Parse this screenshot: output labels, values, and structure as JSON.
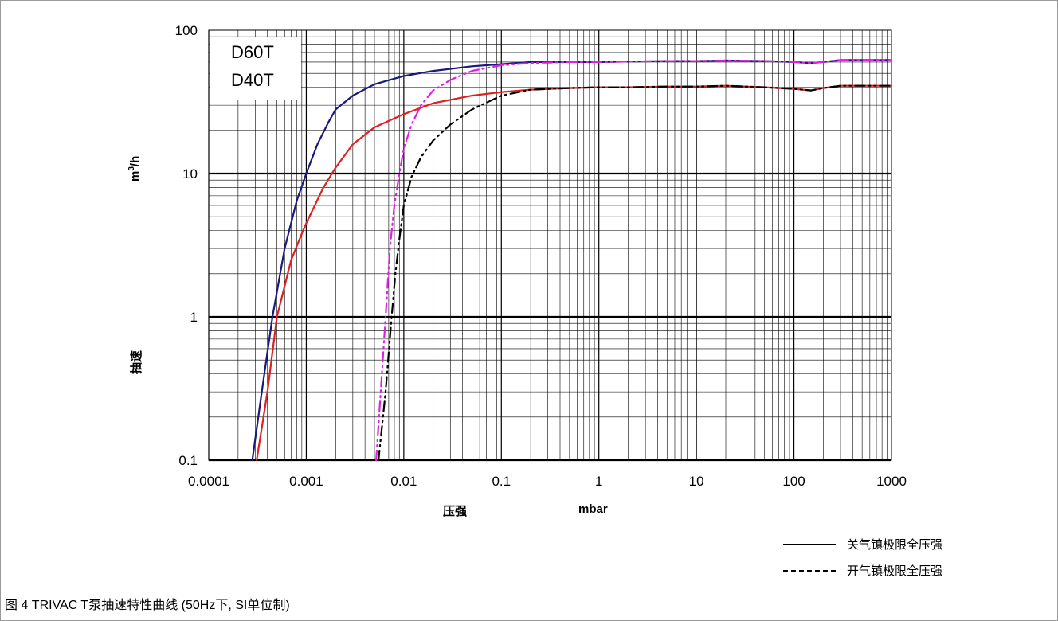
{
  "caption": "图 4 TRIVAC T泵抽速特性曲线 (50Hz下, SI单位制)",
  "models": {
    "top": "D60T",
    "bottom": "D40T"
  },
  "legend": {
    "solid": "关气镇极限全压强",
    "dashed": "开气镇极限全压强"
  },
  "colors": {
    "d60_closed": "#1a1a7a",
    "d60_open": "#e020e0",
    "d40_closed": "#e02020",
    "d40_open": "#000000"
  },
  "chart_data": {
    "type": "line",
    "xscale": "log",
    "yscale": "log",
    "xlim": [
      0.0001,
      1000
    ],
    "ylim": [
      0.1,
      100
    ],
    "xlabel": "压强",
    "xunit": "mbar",
    "ylabel": "抽速",
    "yunit": "m3/h",
    "ylabel_unit_base": "m",
    "ylabel_unit_sup": "3",
    "ylabel_unit_tail": "/h",
    "xticks": [
      "0.0001",
      "0.001",
      "0.01",
      "0.1",
      "1",
      "10",
      "100",
      "1000"
    ],
    "yticks": [
      "0.1",
      "1",
      "10",
      "100"
    ],
    "grid": true,
    "series": [
      {
        "name": "D60T",
        "style": "solid",
        "color": "#1a1a7a",
        "x": [
          0.00028,
          0.00035,
          0.00045,
          0.0006,
          0.0008,
          0.001,
          0.0013,
          0.0017,
          0.002,
          0.003,
          0.005,
          0.01,
          0.02,
          0.05,
          0.1,
          0.2,
          0.5,
          1,
          2,
          5,
          10,
          20,
          50,
          100,
          150,
          200,
          300,
          500,
          1000
        ],
        "y": [
          0.1,
          0.3,
          1,
          3,
          6.5,
          10,
          16,
          23,
          28,
          35,
          42,
          48,
          52,
          56,
          58,
          60,
          60,
          60,
          60.5,
          61,
          61,
          61.5,
          61,
          60,
          59,
          60,
          62,
          62,
          62
        ]
      },
      {
        "name": "D60T",
        "style": "dashed",
        "color": "#e020e0",
        "x": [
          0.0052,
          0.0058,
          0.0065,
          0.0072,
          0.008,
          0.009,
          0.01,
          0.012,
          0.015,
          0.02,
          0.03,
          0.05,
          0.1,
          0.2,
          0.5,
          1,
          2,
          5,
          10,
          20,
          50,
          100,
          150,
          200,
          300,
          500,
          1000
        ],
        "y": [
          0.1,
          0.3,
          1,
          3,
          6,
          10,
          15,
          22,
          30,
          38,
          45,
          52,
          57,
          59,
          60,
          60,
          60.5,
          61,
          61,
          61.5,
          61,
          60,
          59,
          60,
          62,
          62,
          62
        ]
      },
      {
        "name": "D40T",
        "style": "solid",
        "color": "#e02020",
        "x": [
          0.00031,
          0.0004,
          0.0005,
          0.0007,
          0.0009,
          0.001,
          0.0015,
          0.002,
          0.003,
          0.005,
          0.01,
          0.02,
          0.05,
          0.1,
          0.2,
          0.5,
          1,
          2,
          5,
          10,
          20,
          50,
          100,
          150,
          200,
          300,
          500,
          1000
        ],
        "y": [
          0.1,
          0.3,
          1,
          2.5,
          3.8,
          4.5,
          8,
          11,
          16,
          21,
          26,
          31,
          35,
          37,
          38.5,
          39.5,
          40,
          40,
          40.5,
          40.5,
          41,
          40,
          39,
          38,
          39.5,
          41,
          41,
          41
        ]
      },
      {
        "name": "D40T",
        "style": "dashed",
        "color": "#000000",
        "x": [
          0.0055,
          0.0065,
          0.0075,
          0.0082,
          0.009,
          0.01,
          0.012,
          0.015,
          0.02,
          0.03,
          0.05,
          0.1,
          0.2,
          0.5,
          1,
          2,
          5,
          10,
          20,
          50,
          100,
          150,
          200,
          300,
          500,
          1000
        ],
        "y": [
          0.1,
          0.3,
          1,
          2,
          3.5,
          6,
          9.5,
          13,
          17,
          22,
          28,
          35,
          38.5,
          39.5,
          40,
          40,
          40.5,
          40.5,
          41,
          40,
          39,
          38,
          39.5,
          41,
          41,
          41
        ]
      }
    ]
  }
}
